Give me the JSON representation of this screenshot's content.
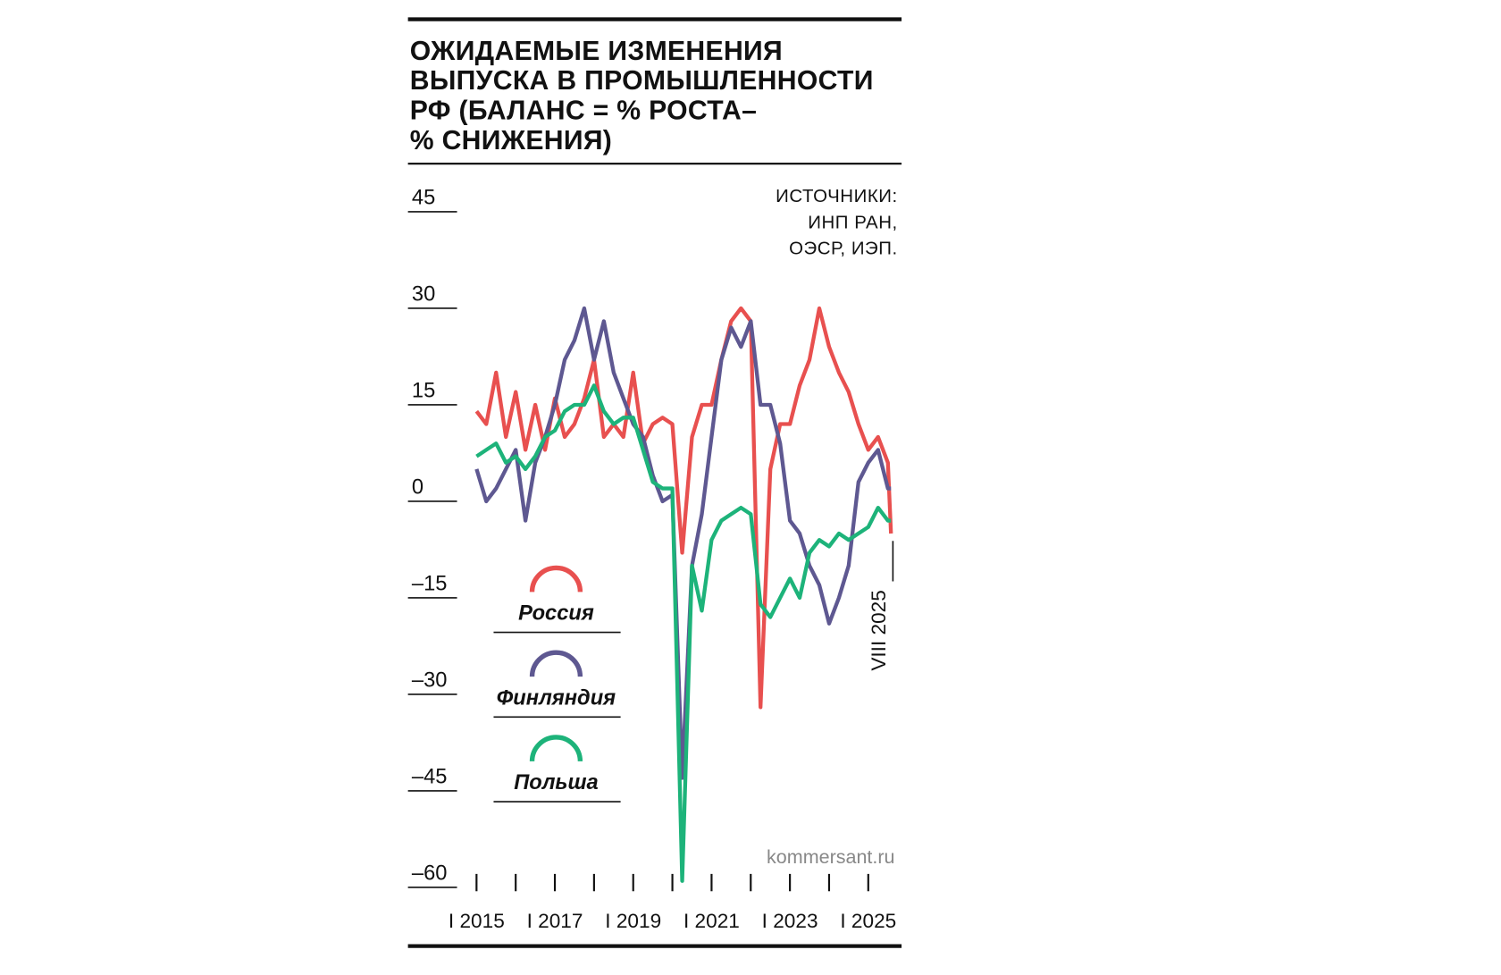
{
  "chart_data": {
    "type": "line",
    "title": [
      "ОЖИДАЕМЫЕ ИЗМЕНЕНИЯ",
      "ВЫПУСКА В ПРОМЫШЛЕННОСТИ",
      "РФ (БАЛАНС = % РОСТА–",
      "% СНИЖЕНИЯ)"
    ],
    "source": [
      "ИСТОЧНИКИ:",
      "ИНП РАН,",
      "ОЭСР, ИЭП."
    ],
    "watermark": "kommersant.ru",
    "annotation": {
      "x": 2025.58,
      "label": "VIII 2025"
    },
    "x": [
      2015,
      2015.25,
      2015.5,
      2015.75,
      2016,
      2016.25,
      2016.5,
      2016.75,
      2017,
      2017.25,
      2017.5,
      2017.75,
      2018,
      2018.25,
      2018.5,
      2018.75,
      2019,
      2019.25,
      2019.5,
      2019.75,
      2020,
      2020.25,
      2020.5,
      2020.75,
      2021,
      2021.25,
      2021.5,
      2021.75,
      2022,
      2022.25,
      2022.5,
      2022.75,
      2023,
      2023.25,
      2023.5,
      2023.75,
      2024,
      2024.25,
      2024.5,
      2024.75,
      2025,
      2025.25,
      2025.5,
      2025.58
    ],
    "series": [
      {
        "name": "Россия",
        "color": "#e8504f",
        "values": [
          14,
          12,
          20,
          10,
          17,
          8,
          15,
          8,
          16,
          10,
          12,
          16,
          22,
          10,
          12,
          10,
          20,
          9,
          12,
          13,
          12,
          -8,
          10,
          15,
          15,
          22,
          28,
          30,
          28,
          -32,
          5,
          12,
          12,
          18,
          22,
          30,
          24,
          20,
          17,
          12,
          8,
          10,
          6,
          -5
        ]
      },
      {
        "name": "Финляндия",
        "color": "#5e5891",
        "values": [
          5,
          0,
          2,
          5,
          8,
          -3,
          6,
          10,
          15,
          22,
          25,
          30,
          22,
          28,
          20,
          16,
          12,
          10,
          4,
          0,
          1,
          -43,
          -10,
          -2,
          10,
          22,
          27,
          24,
          28,
          15,
          15,
          9,
          -3,
          -5,
          -10,
          -13,
          -19,
          -15,
          -10,
          3,
          6,
          8,
          2,
          2
        ]
      },
      {
        "name": "Польша",
        "color": "#1db37a",
        "values": [
          7,
          8,
          9,
          6,
          7,
          5,
          7,
          10,
          11,
          14,
          15,
          15,
          18,
          14,
          12,
          13,
          13,
          8,
          3,
          2,
          2,
          -59,
          -10,
          -17,
          -6,
          -3,
          -2,
          -1,
          -2,
          -16,
          -18,
          -15,
          -12,
          -15,
          -8,
          -6,
          -7,
          -5,
          -6,
          -5,
          -4,
          -1,
          -3,
          -3
        ]
      }
    ],
    "xlim": [
      2013.25,
      2025.85
    ],
    "ylim": [
      -60,
      45
    ],
    "xticks": [
      {
        "value": 2015,
        "label": "I 2015"
      },
      {
        "value": 2016,
        "label": null
      },
      {
        "value": 2017,
        "label": "I 2017"
      },
      {
        "value": 2018,
        "label": null
      },
      {
        "value": 2019,
        "label": "I 2019"
      },
      {
        "value": 2020,
        "label": null
      },
      {
        "value": 2021,
        "label": "I 2021"
      },
      {
        "value": 2022,
        "label": null
      },
      {
        "value": 2023,
        "label": "I 2023"
      },
      {
        "value": 2024,
        "label": null
      },
      {
        "value": 2025,
        "label": "I 2025"
      }
    ],
    "yticks": [
      {
        "value": -60,
        "label": "–60"
      },
      {
        "value": -45,
        "label": "–45"
      },
      {
        "value": -30,
        "label": "–30"
      },
      {
        "value": -15,
        "label": "–15"
      },
      0,
      15,
      30,
      45
    ]
  }
}
